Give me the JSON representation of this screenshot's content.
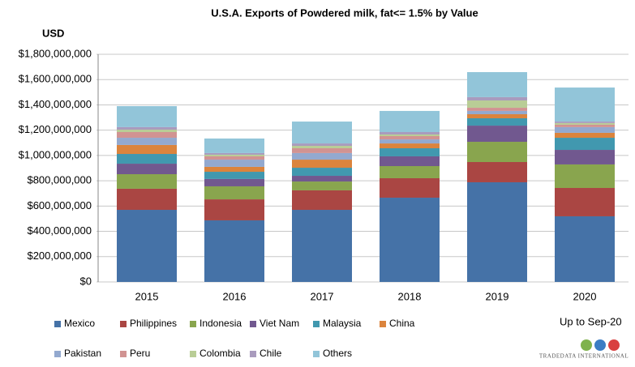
{
  "chart_data": {
    "type": "stacked_bar",
    "title": "U.S.A. Exports of Powdered milk, fat<= 1.5% by Value",
    "y_axis_label": "USD",
    "annotation": "Up to Sep-20",
    "logo": "TradeData International",
    "categories": [
      "2015",
      "2016",
      "2017",
      "2018",
      "2019",
      "2020"
    ],
    "series": [
      {
        "name": "Mexico",
        "color": "#4572a7",
        "values": [
          570000000,
          487000000,
          570000000,
          666000000,
          788000000,
          519000000
        ]
      },
      {
        "name": "Philippines",
        "color": "#aa4643",
        "values": [
          167000000,
          166000000,
          154000000,
          154000000,
          160000000,
          224000000
        ]
      },
      {
        "name": "Indonesia",
        "color": "#89a54e",
        "values": [
          115000000,
          103000000,
          70000000,
          96000000,
          160000000,
          186000000
        ]
      },
      {
        "name": "Viet Nam",
        "color": "#71588f",
        "values": [
          83000000,
          58000000,
          45000000,
          77000000,
          128000000,
          115000000
        ]
      },
      {
        "name": "Malaysia",
        "color": "#4198af",
        "values": [
          77000000,
          57000000,
          64000000,
          64000000,
          58000000,
          96000000
        ]
      },
      {
        "name": "China",
        "color": "#db843d",
        "values": [
          71000000,
          39000000,
          64000000,
          38000000,
          32000000,
          39000000
        ]
      },
      {
        "name": "Pakistan",
        "color": "#93a9cf",
        "values": [
          57000000,
          57000000,
          52000000,
          32000000,
          26000000,
          45000000
        ]
      },
      {
        "name": "Peru",
        "color": "#d19392",
        "values": [
          45000000,
          26000000,
          38000000,
          26000000,
          25000000,
          19000000
        ]
      },
      {
        "name": "Colombia",
        "color": "#b9cd96",
        "values": [
          19000000,
          13000000,
          19000000,
          13000000,
          58000000,
          13000000
        ]
      },
      {
        "name": "Chile",
        "color": "#a99bbd",
        "values": [
          20000000,
          13000000,
          19000000,
          19000000,
          26000000,
          12000000
        ]
      },
      {
        "name": "Others",
        "color": "#92c5d9",
        "values": [
          166000000,
          115000000,
          173000000,
          167000000,
          198000000,
          269000000
        ]
      }
    ],
    "ylim": [
      0,
      1800000000
    ],
    "yticks": [
      {
        "value": 0,
        "label": "$0"
      },
      {
        "value": 200000000,
        "label": "$200,000,000"
      },
      {
        "value": 400000000,
        "label": "$400,000,000"
      },
      {
        "value": 600000000,
        "label": "$600,000,000"
      },
      {
        "value": 800000000,
        "label": "$800,000,000"
      },
      {
        "value": 1000000000,
        "label": "$1,000,000,000"
      },
      {
        "value": 1200000000,
        "label": "$1,200,000,000"
      },
      {
        "value": 1400000000,
        "label": "$1,400,000,000"
      },
      {
        "value": 1600000000,
        "label": "$1,600,000,000"
      },
      {
        "value": 1800000000,
        "label": "$1,800,000,000"
      }
    ],
    "grid": true
  }
}
